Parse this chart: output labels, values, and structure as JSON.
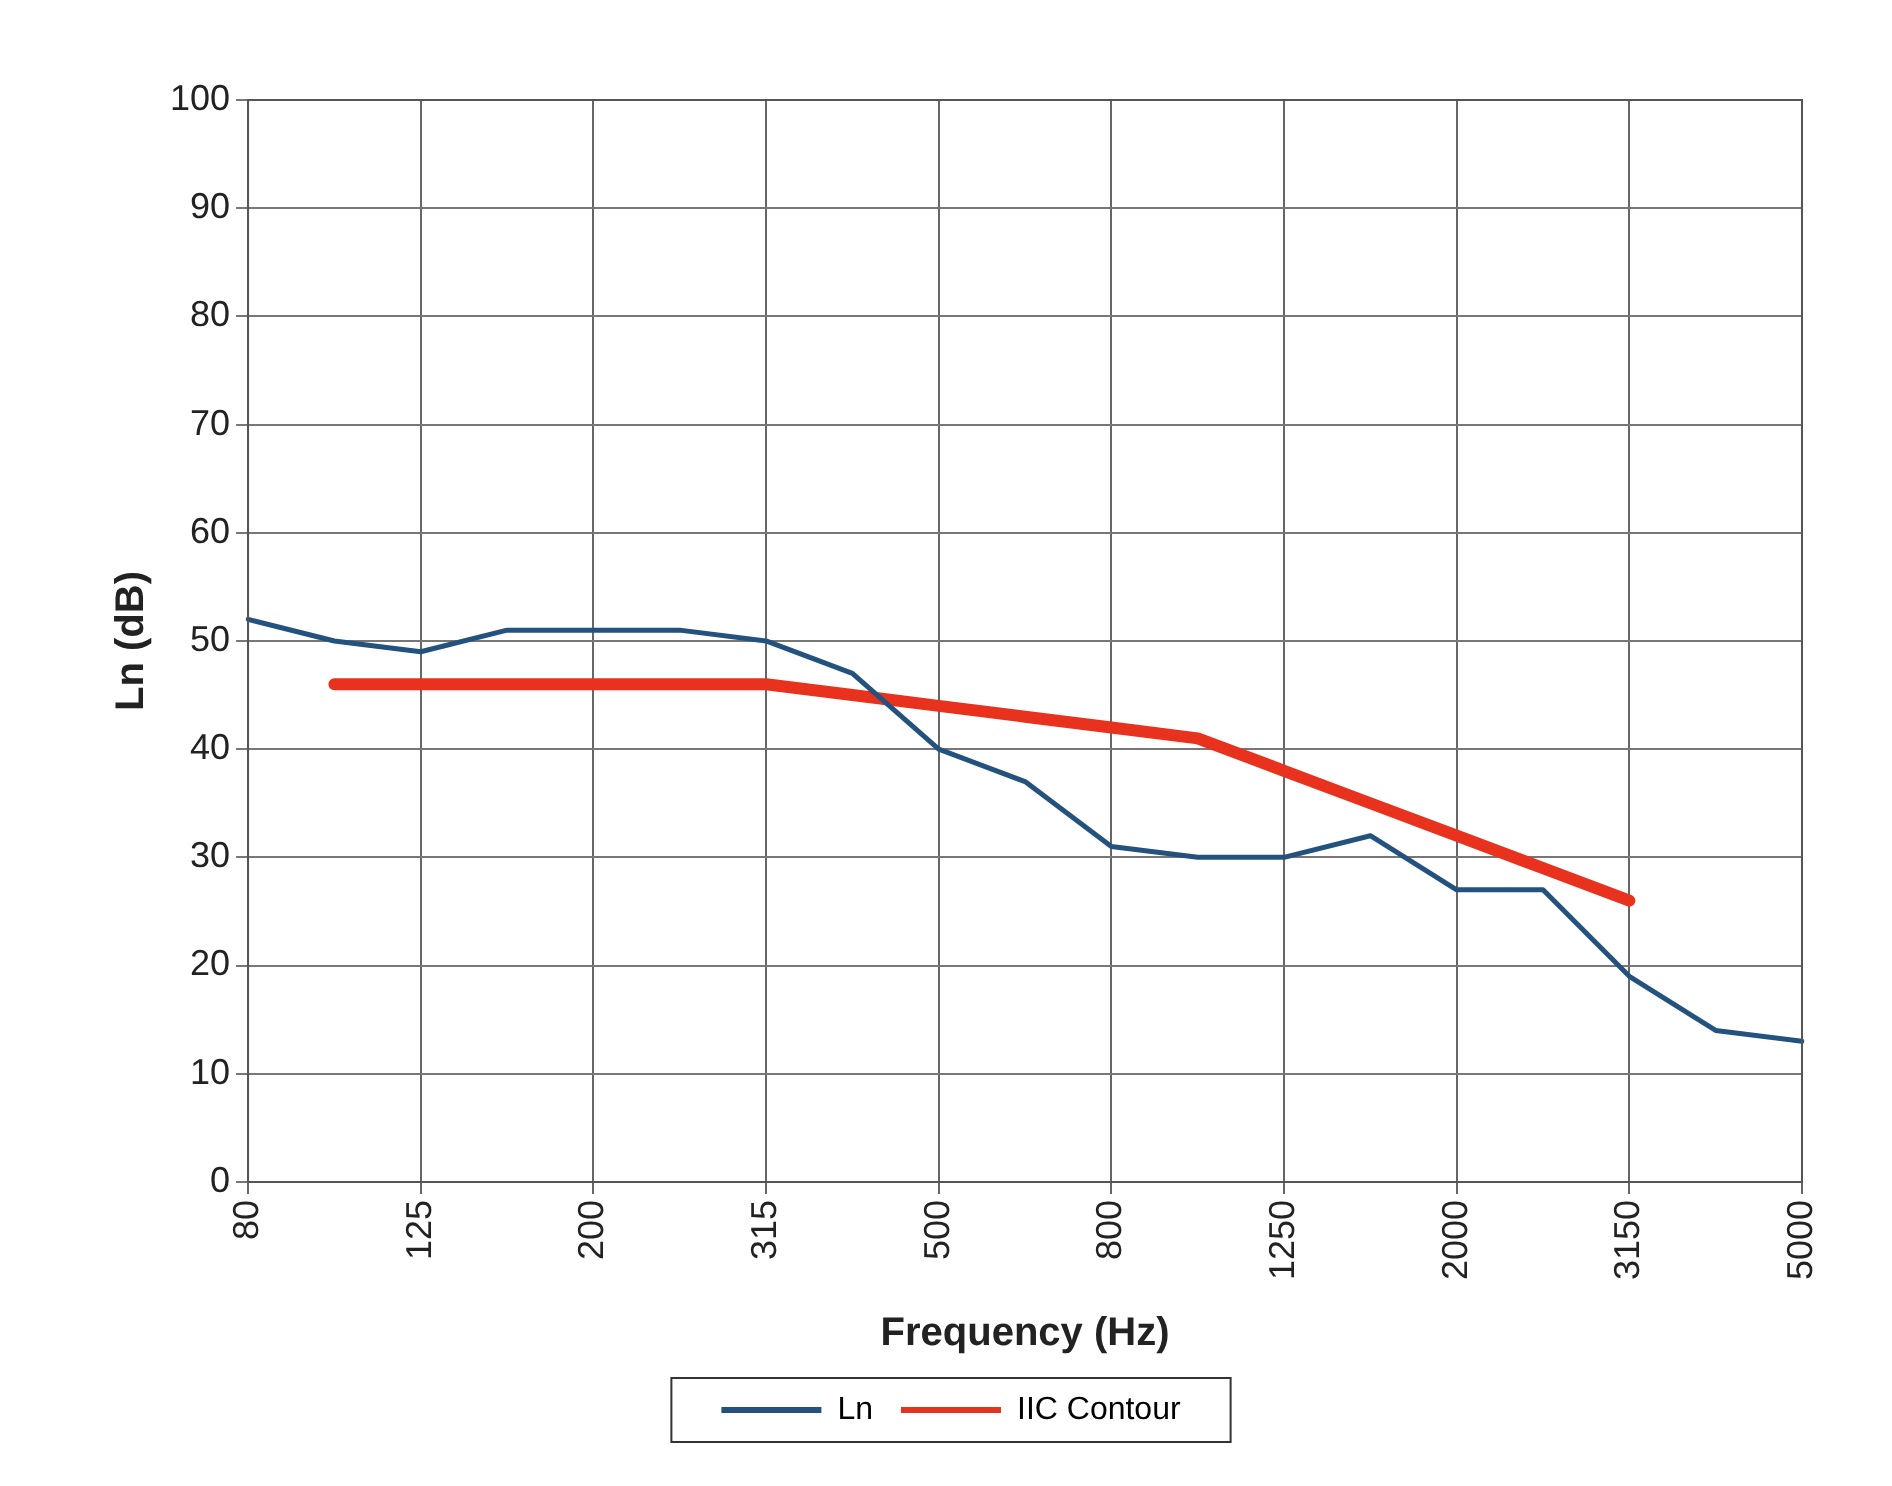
{
  "chart_data": {
    "type": "line",
    "xlabel": "Frequency (Hz)",
    "ylabel": "Ln (dB)",
    "categories": [
      "80",
      null,
      "125",
      null,
      "200",
      null,
      "315",
      null,
      "500",
      null,
      "800",
      null,
      "1250",
      null,
      "2000",
      null,
      "3150",
      null,
      "5000"
    ],
    "series": [
      {
        "name": "Ln",
        "color": "#24527f",
        "values": [
          52,
          50,
          49,
          51,
          51,
          51,
          50,
          47,
          40,
          37,
          31,
          30,
          30,
          32,
          27,
          27,
          19,
          14,
          13
        ]
      },
      {
        "name": "IIC Contour",
        "color": "#e8321e",
        "values": [
          null,
          46,
          46,
          46,
          46,
          46,
          46,
          45,
          44,
          43,
          42,
          41,
          38,
          35,
          32,
          29,
          26,
          null,
          null
        ]
      }
    ],
    "ylim": [
      0,
      100
    ],
    "yticks": [
      0,
      10,
      20,
      30,
      40,
      50,
      60,
      70,
      80,
      90,
      100
    ],
    "grid": true,
    "legend": "bottom",
    "marker": "none",
    "line_style": "solid"
  }
}
